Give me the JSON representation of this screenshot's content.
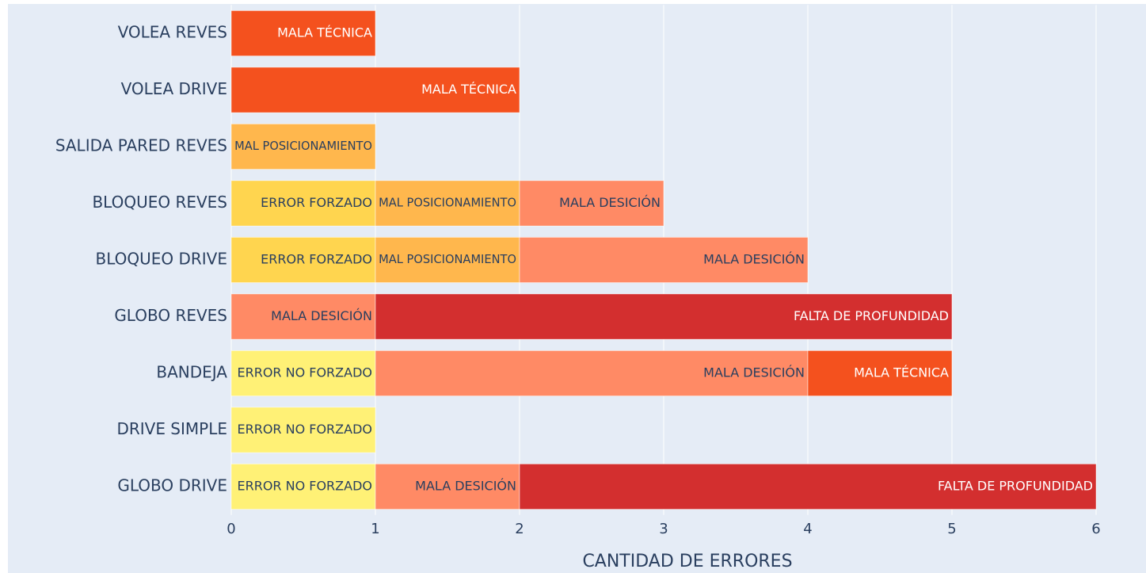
{
  "chart_data": {
    "type": "bar",
    "orientation": "horizontal",
    "stacked": true,
    "x_label": "CANTIDAD DE ERRORES",
    "categories": [
      "GLOBO DRIVE",
      "DRIVE SIMPLE",
      "BANDEJA",
      "GLOBO REVES",
      "BLOQUEO DRIVE",
      "BLOQUEO REVES",
      "SALIDA PARED REVES",
      "VOLEA DRIVE",
      "VOLEA REVES"
    ],
    "series": [
      {
        "name": "ERROR NO FORZADO",
        "color": "#fff176",
        "values": [
          1,
          1,
          1,
          null,
          null,
          null,
          null,
          null,
          null
        ]
      },
      {
        "name": "ERROR FORZADO",
        "color": "#ffd54f",
        "values": [
          null,
          null,
          null,
          null,
          1,
          1,
          null,
          null,
          null
        ]
      },
      {
        "name": "MAL POSICIONAMIENTO",
        "color": "#ffb74d",
        "values": [
          null,
          null,
          null,
          null,
          1,
          1,
          1,
          null,
          null
        ]
      },
      {
        "name": "MALA DESICIÓN",
        "color": "#ff8a65",
        "values": [
          1,
          null,
          3,
          1,
          2,
          1,
          null,
          null,
          null
        ]
      },
      {
        "name": "FALTA DE PROFUNDIDAD",
        "color": "#d32f2f",
        "values": [
          4,
          null,
          null,
          4,
          null,
          null,
          null,
          null,
          null
        ]
      },
      {
        "name": "MALA TÉCNICA",
        "color": "#f4511e",
        "values": [
          null,
          null,
          1,
          null,
          null,
          null,
          null,
          2,
          1
        ]
      }
    ],
    "xlim": [
      0,
      6
    ],
    "xticks": [
      0,
      1,
      2,
      3,
      4,
      5,
      6
    ],
    "grid": true,
    "legend": false
  }
}
